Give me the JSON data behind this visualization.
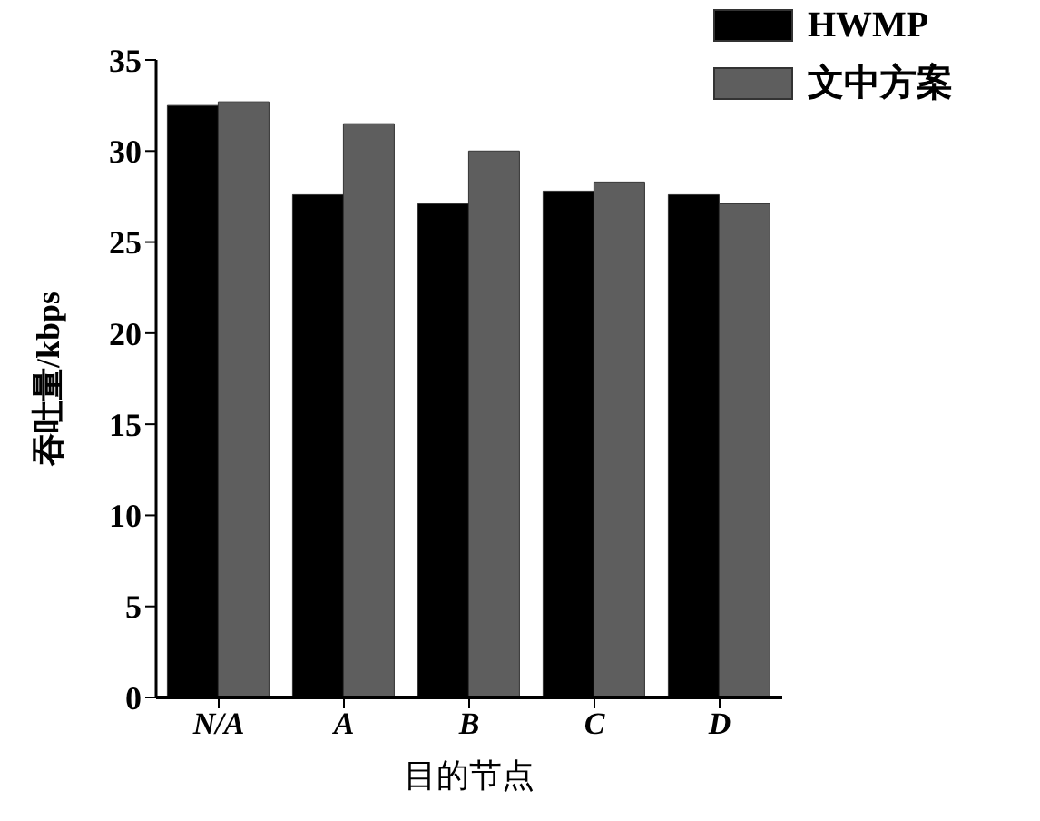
{
  "chart_data": {
    "type": "bar",
    "xlabel": "目的节点",
    "ylabel": "吞吐量/kbps",
    "categories": [
      "N/A",
      "A",
      "B",
      "C",
      "D"
    ],
    "series": [
      {
        "name": "HWMP",
        "color": "#000000",
        "values": [
          32.5,
          27.6,
          27.1,
          27.8,
          27.6
        ]
      },
      {
        "name": "文中方案",
        "color": "#5e5e5e",
        "values": [
          32.7,
          31.5,
          30.0,
          28.3,
          27.1
        ]
      }
    ],
    "ylim": [
      0,
      35
    ],
    "yticks": [
      0,
      5,
      10,
      15,
      20,
      25,
      30,
      35
    ],
    "grid": false,
    "legend": "top right"
  }
}
